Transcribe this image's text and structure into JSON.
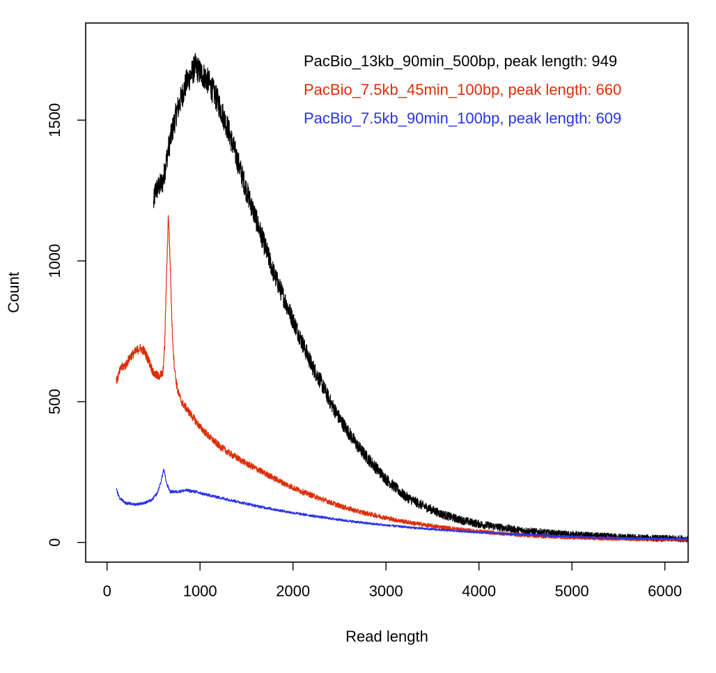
{
  "chart_data": {
    "type": "line",
    "xlabel": "Read length",
    "ylabel": "Count",
    "xlim": [
      -230,
      6250
    ],
    "ylim": [
      -70,
      1845
    ],
    "x_ticks": [
      0,
      1000,
      2000,
      3000,
      4000,
      5000,
      6000
    ],
    "y_ticks": [
      0,
      500,
      1000,
      1500
    ],
    "grid": false,
    "legend_placement": "top-right",
    "series": [
      {
        "name": "PacBio_13kb_90min_500bp, peak length:  949",
        "color": "#000000",
        "noise": 28,
        "points": [
          [
            500,
            1200
          ],
          [
            520,
            1250
          ],
          [
            560,
            1265
          ],
          [
            600,
            1280
          ],
          [
            650,
            1380
          ],
          [
            700,
            1460
          ],
          [
            750,
            1530
          ],
          [
            800,
            1580
          ],
          [
            850,
            1630
          ],
          [
            900,
            1660
          ],
          [
            949,
            1690
          ],
          [
            1000,
            1670
          ],
          [
            1050,
            1655
          ],
          [
            1100,
            1630
          ],
          [
            1150,
            1595
          ],
          [
            1200,
            1560
          ],
          [
            1300,
            1470
          ],
          [
            1400,
            1360
          ],
          [
            1500,
            1250
          ],
          [
            1600,
            1150
          ],
          [
            1700,
            1050
          ],
          [
            1800,
            950
          ],
          [
            1900,
            870
          ],
          [
            2000,
            790
          ],
          [
            2100,
            710
          ],
          [
            2200,
            630
          ],
          [
            2300,
            570
          ],
          [
            2400,
            500
          ],
          [
            2500,
            440
          ],
          [
            2600,
            390
          ],
          [
            2700,
            340
          ],
          [
            2800,
            300
          ],
          [
            3000,
            225
          ],
          [
            3200,
            165
          ],
          [
            3400,
            130
          ],
          [
            3600,
            100
          ],
          [
            3800,
            80
          ],
          [
            4000,
            65
          ],
          [
            4200,
            55
          ],
          [
            4400,
            45
          ],
          [
            4600,
            38
          ],
          [
            4800,
            32
          ],
          [
            5000,
            28
          ],
          [
            5200,
            24
          ],
          [
            5400,
            21
          ],
          [
            5600,
            18
          ],
          [
            5800,
            16
          ],
          [
            6000,
            14
          ],
          [
            6250,
            13
          ]
        ]
      },
      {
        "name": "PacBio_7.5kb_45min_100bp, peak length:  660",
        "color": "#dc2e08",
        "noise": 15,
        "points": [
          [
            100,
            570
          ],
          [
            150,
            620
          ],
          [
            200,
            630
          ],
          [
            250,
            660
          ],
          [
            300,
            675
          ],
          [
            350,
            690
          ],
          [
            400,
            680
          ],
          [
            450,
            645
          ],
          [
            500,
            600
          ],
          [
            550,
            590
          ],
          [
            600,
            600
          ],
          [
            620,
            700
          ],
          [
            640,
            950
          ],
          [
            660,
            1170
          ],
          [
            680,
            980
          ],
          [
            700,
            760
          ],
          [
            720,
            640
          ],
          [
            740,
            580
          ],
          [
            760,
            540
          ],
          [
            800,
            500
          ],
          [
            900,
            455
          ],
          [
            1000,
            410
          ],
          [
            1100,
            375
          ],
          [
            1200,
            345
          ],
          [
            1300,
            320
          ],
          [
            1400,
            300
          ],
          [
            1500,
            280
          ],
          [
            1700,
            245
          ],
          [
            1900,
            210
          ],
          [
            2100,
            180
          ],
          [
            2300,
            155
          ],
          [
            2500,
            130
          ],
          [
            2700,
            110
          ],
          [
            2900,
            95
          ],
          [
            3100,
            80
          ],
          [
            3300,
            68
          ],
          [
            3500,
            58
          ],
          [
            3700,
            50
          ],
          [
            3900,
            42
          ],
          [
            4100,
            36
          ],
          [
            4300,
            30
          ],
          [
            4500,
            25
          ],
          [
            4700,
            21
          ],
          [
            5000,
            17
          ],
          [
            5300,
            14
          ],
          [
            5600,
            12
          ],
          [
            5900,
            10
          ],
          [
            6250,
            9
          ]
        ]
      },
      {
        "name": "PacBio_7.5kb_90min_100bp, peak length:  609",
        "color": "#2a33e8",
        "noise": 8,
        "points": [
          [
            100,
            190
          ],
          [
            130,
            160
          ],
          [
            200,
            140
          ],
          [
            300,
            135
          ],
          [
            400,
            140
          ],
          [
            480,
            150
          ],
          [
            540,
            175
          ],
          [
            580,
            215
          ],
          [
            609,
            260
          ],
          [
            640,
            210
          ],
          [
            680,
            180
          ],
          [
            750,
            180
          ],
          [
            850,
            185
          ],
          [
            950,
            180
          ],
          [
            1000,
            175
          ],
          [
            1200,
            160
          ],
          [
            1400,
            145
          ],
          [
            1600,
            130
          ],
          [
            1800,
            117
          ],
          [
            2000,
            105
          ],
          [
            2200,
            95
          ],
          [
            2400,
            85
          ],
          [
            2600,
            76
          ],
          [
            2800,
            68
          ],
          [
            3000,
            61
          ],
          [
            3200,
            55
          ],
          [
            3400,
            49
          ],
          [
            3600,
            44
          ],
          [
            3800,
            40
          ],
          [
            4000,
            36
          ],
          [
            4200,
            32
          ],
          [
            4400,
            29
          ],
          [
            4600,
            26
          ],
          [
            4800,
            23
          ],
          [
            5000,
            20
          ],
          [
            5300,
            17
          ],
          [
            5600,
            15
          ],
          [
            5900,
            13
          ],
          [
            6250,
            12
          ]
        ]
      }
    ]
  }
}
